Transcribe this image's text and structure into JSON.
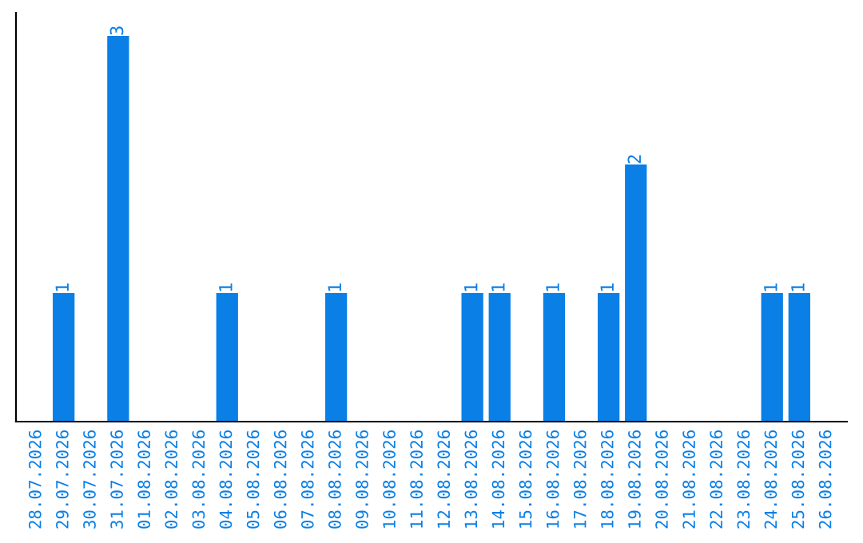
{
  "chart_data": {
    "type": "bar",
    "categories": [
      "28.07.2026",
      "29.07.2026",
      "30.07.2026",
      "31.07.2026",
      "01.08.2026",
      "02.08.2026",
      "03.08.2026",
      "04.08.2026",
      "05.08.2026",
      "06.08.2026",
      "07.08.2026",
      "08.08.2026",
      "09.08.2026",
      "10.08.2026",
      "11.08.2026",
      "12.08.2026",
      "13.08.2026",
      "14.08.2026",
      "15.08.2026",
      "16.08.2026",
      "17.08.2026",
      "18.08.2026",
      "19.08.2026",
      "20.08.2026",
      "21.08.2026",
      "22.08.2026",
      "23.08.2026",
      "24.08.2026",
      "25.08.2026",
      "26.08.2026"
    ],
    "values": [
      0,
      1,
      0,
      3,
      0,
      0,
      0,
      1,
      0,
      0,
      0,
      1,
      0,
      0,
      0,
      0,
      1,
      1,
      0,
      1,
      0,
      1,
      2,
      0,
      0,
      0,
      0,
      1,
      1,
      0
    ],
    "value_labels": [
      null,
      "1",
      null,
      "3",
      null,
      null,
      null,
      "1",
      null,
      null,
      null,
      "1",
      null,
      null,
      null,
      null,
      "1",
      "1",
      null,
      "1",
      null,
      "1",
      "2",
      null,
      null,
      null,
      null,
      "1",
      "1",
      null
    ],
    "color": "#0a7fe6",
    "tick_labels": "x",
    "grid": false,
    "legend": false
  }
}
